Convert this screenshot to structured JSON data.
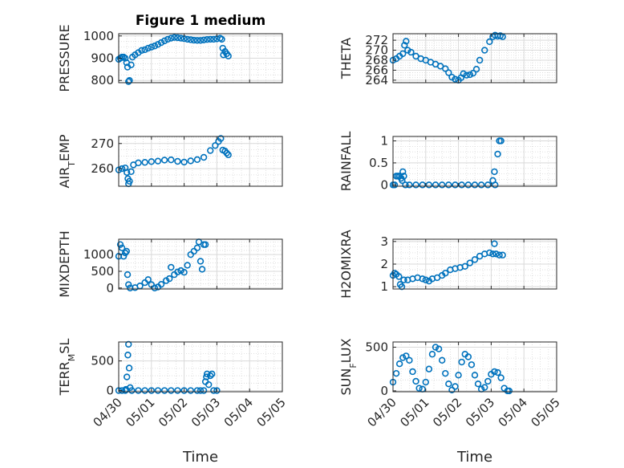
{
  "chart_data": [
    {
      "type": "scatter",
      "title": "Figure 1 medium",
      "ylabel": "PRESSURE",
      "ylabel_sub": "",
      "xlabel": "",
      "yticks": [
        800,
        900,
        1000
      ],
      "ylim": [
        790,
        1010
      ],
      "xlim": [
        0,
        5
      ],
      "points": [
        [
          0.0,
          895
        ],
        [
          0.05,
          900
        ],
        [
          0.1,
          905
        ],
        [
          0.15,
          905
        ],
        [
          0.2,
          900
        ],
        [
          0.24,
          880
        ],
        [
          0.27,
          860
        ],
        [
          0.3,
          795
        ],
        [
          0.33,
          800
        ],
        [
          0.38,
          870
        ],
        [
          0.42,
          905
        ],
        [
          0.5,
          915
        ],
        [
          0.6,
          925
        ],
        [
          0.7,
          935
        ],
        [
          0.8,
          938
        ],
        [
          0.9,
          945
        ],
        [
          1.0,
          950
        ],
        [
          1.1,
          955
        ],
        [
          1.2,
          962
        ],
        [
          1.3,
          970
        ],
        [
          1.4,
          978
        ],
        [
          1.5,
          985
        ],
        [
          1.6,
          990
        ],
        [
          1.7,
          993
        ],
        [
          1.8,
          992
        ],
        [
          1.9,
          990
        ],
        [
          2.0,
          988
        ],
        [
          2.1,
          985
        ],
        [
          2.2,
          983
        ],
        [
          2.3,
          981
        ],
        [
          2.4,
          980
        ],
        [
          2.5,
          980
        ],
        [
          2.6,
          982
        ],
        [
          2.7,
          984
        ],
        [
          2.8,
          985
        ],
        [
          2.9,
          985
        ],
        [
          3.0,
          987
        ],
        [
          3.1,
          990
        ],
        [
          3.15,
          985
        ],
        [
          3.18,
          945
        ],
        [
          3.2,
          915
        ],
        [
          3.25,
          930
        ],
        [
          3.3,
          920
        ],
        [
          3.35,
          910
        ]
      ]
    },
    {
      "type": "scatter",
      "title": "",
      "ylabel": "THETA",
      "ylabel_sub": "",
      "xlabel": "",
      "yticks": [
        264,
        266,
        268,
        270,
        272
      ],
      "ylim": [
        263.5,
        273.3
      ],
      "xlim": [
        0,
        5
      ],
      "points": [
        [
          0.0,
          268
        ],
        [
          0.1,
          268.3
        ],
        [
          0.2,
          268.8
        ],
        [
          0.3,
          269.3
        ],
        [
          0.35,
          271
        ],
        [
          0.4,
          271.8
        ],
        [
          0.45,
          270
        ],
        [
          0.55,
          269.6
        ],
        [
          0.7,
          268.8
        ],
        [
          0.85,
          268.3
        ],
        [
          1.0,
          268
        ],
        [
          1.15,
          267.6
        ],
        [
          1.3,
          267.2
        ],
        [
          1.45,
          266.8
        ],
        [
          1.6,
          266.3
        ],
        [
          1.7,
          265.5
        ],
        [
          1.8,
          264.6
        ],
        [
          1.9,
          264.2
        ],
        [
          2.0,
          264.0
        ],
        [
          2.08,
          264.5
        ],
        [
          2.15,
          265.3
        ],
        [
          2.25,
          265.0
        ],
        [
          2.35,
          265.1
        ],
        [
          2.45,
          265.4
        ],
        [
          2.55,
          266.2
        ],
        [
          2.65,
          268.0
        ],
        [
          2.8,
          270.0
        ],
        [
          2.95,
          271.7
        ],
        [
          3.05,
          272.7
        ],
        [
          3.12,
          273.0
        ],
        [
          3.2,
          272.8
        ],
        [
          3.28,
          272.9
        ],
        [
          3.35,
          272.7
        ]
      ]
    },
    {
      "type": "scatter",
      "title": "",
      "ylabel": "AIR",
      "ylabel_sub": "T",
      "ylabel_tail": "EMP",
      "xlabel": "",
      "yticks": [
        260,
        270
      ],
      "ylim": [
        253,
        272.8
      ],
      "xlim": [
        0,
        5
      ],
      "points": [
        [
          0.0,
          259.5
        ],
        [
          0.1,
          260
        ],
        [
          0.2,
          260.3
        ],
        [
          0.25,
          258.5
        ],
        [
          0.28,
          256
        ],
        [
          0.3,
          254
        ],
        [
          0.33,
          255
        ],
        [
          0.38,
          258.8
        ],
        [
          0.45,
          261.5
        ],
        [
          0.6,
          262.3
        ],
        [
          0.8,
          262.5
        ],
        [
          1.0,
          262.8
        ],
        [
          1.2,
          263
        ],
        [
          1.4,
          263.4
        ],
        [
          1.6,
          263.5
        ],
        [
          1.8,
          262.9
        ],
        [
          2.0,
          262.6
        ],
        [
          2.2,
          263.1
        ],
        [
          2.4,
          263.6
        ],
        [
          2.6,
          264.5
        ],
        [
          2.8,
          267.2
        ],
        [
          2.95,
          269.2
        ],
        [
          3.05,
          270.8
        ],
        [
          3.12,
          272
        ],
        [
          3.18,
          267.4
        ],
        [
          3.25,
          267.0
        ],
        [
          3.3,
          266.2
        ],
        [
          3.35,
          265.5
        ]
      ]
    },
    {
      "type": "scatter",
      "title": "",
      "ylabel": "RAINFALL",
      "ylabel_sub": "",
      "xlabel": "",
      "yticks": [
        0,
        0.5,
        1
      ],
      "ylim": [
        -0.03,
        1.1
      ],
      "xlim": [
        0,
        5
      ],
      "points": [
        [
          0.0,
          0.0
        ],
        [
          0.05,
          0.0
        ],
        [
          0.1,
          0.2
        ],
        [
          0.15,
          0.2
        ],
        [
          0.2,
          0.2
        ],
        [
          0.25,
          0.15
        ],
        [
          0.28,
          0.1
        ],
        [
          0.3,
          0.3
        ],
        [
          0.33,
          0.2
        ],
        [
          0.38,
          0.0
        ],
        [
          0.5,
          0.0
        ],
        [
          0.7,
          0.0
        ],
        [
          0.9,
          0.0
        ],
        [
          1.1,
          0.0
        ],
        [
          1.3,
          0.0
        ],
        [
          1.5,
          0.0
        ],
        [
          1.7,
          0.0
        ],
        [
          1.9,
          0.0
        ],
        [
          2.1,
          0.0
        ],
        [
          2.3,
          0.0
        ],
        [
          2.5,
          0.0
        ],
        [
          2.7,
          0.0
        ],
        [
          2.9,
          0.0
        ],
        [
          3.05,
          0.1
        ],
        [
          3.1,
          0.3
        ],
        [
          3.12,
          0.0
        ],
        [
          3.2,
          0.7
        ],
        [
          3.25,
          1.0
        ],
        [
          3.3,
          1.0
        ]
      ]
    },
    {
      "type": "scatter",
      "title": "",
      "ylabel": "MIXDEPTH",
      "ylabel_sub": "",
      "xlabel": "",
      "yticks": [
        0,
        500,
        1000
      ],
      "ylim": [
        -30,
        1460
      ],
      "xlim": [
        0,
        5
      ],
      "points": [
        [
          0.0,
          950
        ],
        [
          0.05,
          1300
        ],
        [
          0.1,
          1200
        ],
        [
          0.15,
          950
        ],
        [
          0.2,
          1050
        ],
        [
          0.24,
          1100
        ],
        [
          0.27,
          400
        ],
        [
          0.3,
          100
        ],
        [
          0.35,
          0
        ],
        [
          0.5,
          10
        ],
        [
          0.65,
          60
        ],
        [
          0.8,
          160
        ],
        [
          0.9,
          250
        ],
        [
          1.0,
          100
        ],
        [
          1.1,
          0
        ],
        [
          1.2,
          30
        ],
        [
          1.3,
          110
        ],
        [
          1.45,
          220
        ],
        [
          1.55,
          280
        ],
        [
          1.6,
          620
        ],
        [
          1.7,
          400
        ],
        [
          1.8,
          480
        ],
        [
          1.9,
          520
        ],
        [
          2.0,
          470
        ],
        [
          2.1,
          680
        ],
        [
          2.2,
          1000
        ],
        [
          2.3,
          1100
        ],
        [
          2.4,
          1200
        ],
        [
          2.45,
          1380
        ],
        [
          2.5,
          800
        ],
        [
          2.55,
          560
        ],
        [
          2.6,
          1300
        ],
        [
          2.65,
          1300
        ]
      ]
    },
    {
      "type": "scatter",
      "title": "",
      "ylabel": "H2OMIXRA",
      "ylabel_sub": "",
      "xlabel": "",
      "yticks": [
        1,
        2,
        3
      ],
      "ylim": [
        0.9,
        3.1
      ],
      "xlim": [
        0,
        5
      ],
      "points": [
        [
          0.0,
          1.5
        ],
        [
          0.05,
          1.6
        ],
        [
          0.1,
          1.55
        ],
        [
          0.18,
          1.45
        ],
        [
          0.22,
          1.1
        ],
        [
          0.27,
          1.0
        ],
        [
          0.33,
          1.3
        ],
        [
          0.45,
          1.3
        ],
        [
          0.6,
          1.35
        ],
        [
          0.75,
          1.4
        ],
        [
          0.9,
          1.35
        ],
        [
          1.0,
          1.3
        ],
        [
          1.1,
          1.25
        ],
        [
          1.2,
          1.35
        ],
        [
          1.35,
          1.4
        ],
        [
          1.5,
          1.5
        ],
        [
          1.6,
          1.6
        ],
        [
          1.75,
          1.75
        ],
        [
          1.9,
          1.8
        ],
        [
          2.05,
          1.85
        ],
        [
          2.2,
          1.9
        ],
        [
          2.35,
          2.05
        ],
        [
          2.5,
          2.2
        ],
        [
          2.65,
          2.35
        ],
        [
          2.8,
          2.45
        ],
        [
          2.95,
          2.5
        ],
        [
          3.05,
          2.45
        ],
        [
          3.1,
          2.9
        ],
        [
          3.15,
          2.45
        ],
        [
          3.25,
          2.4
        ],
        [
          3.35,
          2.4
        ]
      ]
    },
    {
      "type": "scatter",
      "title": "",
      "ylabel": "TERR",
      "ylabel_sub": "M",
      "ylabel_tail": "SL",
      "xlabel": "Time",
      "yticks": [
        0,
        500
      ],
      "ylim": [
        -20,
        820
      ],
      "xlim": [
        0,
        5
      ],
      "xticklabels": [
        "04/30",
        "05/01",
        "05/02",
        "05/03",
        "05/04",
        "05/05"
      ],
      "points": [
        [
          0.0,
          0
        ],
        [
          0.1,
          0
        ],
        [
          0.2,
          0
        ],
        [
          0.22,
          20
        ],
        [
          0.25,
          230
        ],
        [
          0.28,
          600
        ],
        [
          0.3,
          780
        ],
        [
          0.32,
          380
        ],
        [
          0.35,
          50
        ],
        [
          0.4,
          0
        ],
        [
          0.6,
          0
        ],
        [
          0.8,
          0
        ],
        [
          1.0,
          0
        ],
        [
          1.2,
          0
        ],
        [
          1.4,
          0
        ],
        [
          1.6,
          0
        ],
        [
          1.8,
          0
        ],
        [
          2.0,
          0
        ],
        [
          2.2,
          0
        ],
        [
          2.4,
          0
        ],
        [
          2.5,
          0
        ],
        [
          2.6,
          0
        ],
        [
          2.65,
          150
        ],
        [
          2.68,
          230
        ],
        [
          2.7,
          280
        ],
        [
          2.75,
          100
        ],
        [
          2.8,
          250
        ],
        [
          2.85,
          280
        ],
        [
          2.9,
          0
        ],
        [
          3.0,
          0
        ]
      ]
    },
    {
      "type": "scatter",
      "title": "",
      "ylabel": "SUN",
      "ylabel_sub": "F",
      "ylabel_tail": "LUX",
      "xlabel": "Time",
      "yticks": [
        0,
        500
      ],
      "ylim": [
        -10,
        560
      ],
      "xlim": [
        0,
        5
      ],
      "xticklabels": [
        "04/30",
        "05/01",
        "05/02",
        "05/03",
        "05/04",
        "05/05"
      ],
      "points": [
        [
          0.0,
          100
        ],
        [
          0.1,
          200
        ],
        [
          0.2,
          310
        ],
        [
          0.3,
          380
        ],
        [
          0.4,
          400
        ],
        [
          0.5,
          350
        ],
        [
          0.6,
          220
        ],
        [
          0.7,
          110
        ],
        [
          0.8,
          30
        ],
        [
          0.9,
          20
        ],
        [
          1.0,
          100
        ],
        [
          1.1,
          250
        ],
        [
          1.2,
          420
        ],
        [
          1.3,
          500
        ],
        [
          1.4,
          480
        ],
        [
          1.5,
          350
        ],
        [
          1.6,
          200
        ],
        [
          1.7,
          80
        ],
        [
          1.8,
          10
        ],
        [
          1.9,
          50
        ],
        [
          2.0,
          180
        ],
        [
          2.1,
          330
        ],
        [
          2.2,
          420
        ],
        [
          2.3,
          390
        ],
        [
          2.4,
          300
        ],
        [
          2.5,
          180
        ],
        [
          2.6,
          80
        ],
        [
          2.7,
          20
        ],
        [
          2.8,
          40
        ],
        [
          2.9,
          110
        ],
        [
          3.0,
          190
        ],
        [
          3.1,
          220
        ],
        [
          3.2,
          210
        ],
        [
          3.3,
          150
        ],
        [
          3.4,
          30
        ],
        [
          3.5,
          0
        ],
        [
          3.55,
          0
        ]
      ]
    }
  ],
  "colors": {
    "marker": "#0072bd",
    "axis": "#262626",
    "grid": "#d9d9d9"
  }
}
